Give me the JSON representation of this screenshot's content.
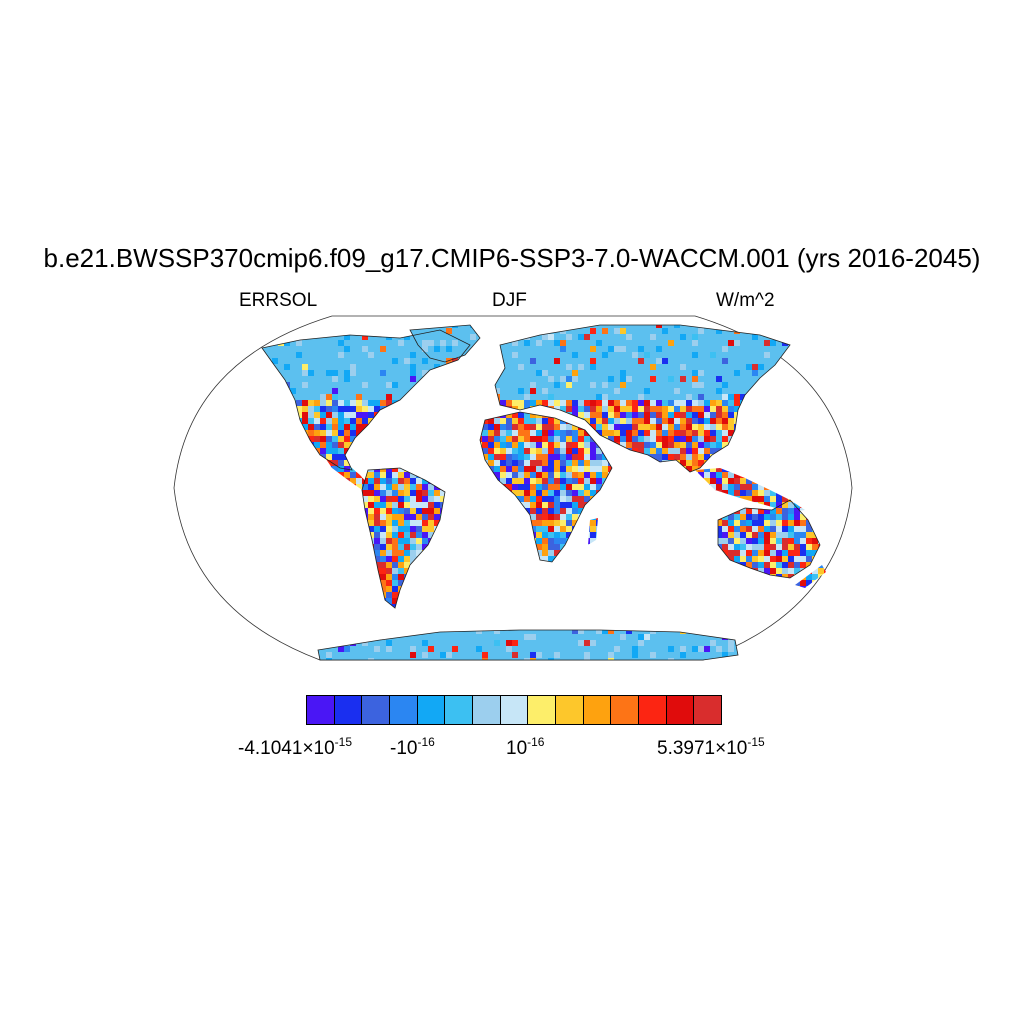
{
  "title": "b.e21.BWSSP370cmip6.f09_g17.CMIP6-SSP3-7.0-WACCM.001 (yrs 2016-2045)",
  "subtitle": {
    "left": "ERRSOL",
    "center": "DJF",
    "right": "W/m^2"
  },
  "colorbar": {
    "colors": [
      "#4a16f5",
      "#1a2ff0",
      "#3c63df",
      "#2b86f2",
      "#12a8f5",
      "#3cc0f2",
      "#9ccfee",
      "#c7e6f7",
      "#fdee6a",
      "#fdc72b",
      "#fea20f",
      "#fd7416",
      "#fc2512",
      "#e00c0c",
      "#d92d2d"
    ],
    "labels": [
      {
        "base": "-4.1041×10",
        "exp": "-15"
      },
      {
        "base": "-10",
        "exp": "-16"
      },
      {
        "base": "10",
        "exp": "-16"
      },
      {
        "base": "5.3971×10",
        "exp": "-15"
      }
    ]
  },
  "map": {
    "projection": "Robinson",
    "field": "noisy land-only field",
    "land_base_color": "#5cc0ef"
  }
}
